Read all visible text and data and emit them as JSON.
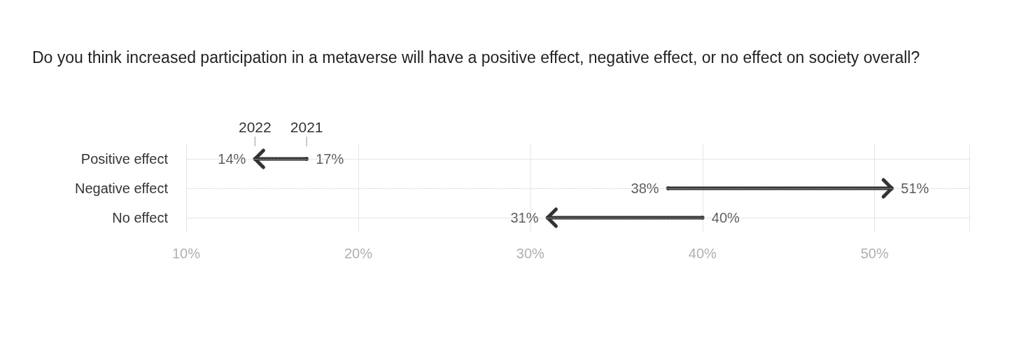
{
  "chart_data": {
    "type": "scatter",
    "orientation": "horizontal",
    "title": "Do you think increased participation in a metaverse will have a positive effect, negative effect, or no effect on society overall?",
    "categories": [
      "Positive effect",
      "Negative effect",
      "No effect"
    ],
    "series": [
      {
        "name": "2021",
        "color": "#333333",
        "values": [
          17,
          38,
          40
        ],
        "value_labels": [
          "17%",
          "38%",
          "40%"
        ]
      },
      {
        "name": "2022",
        "color": "#333333",
        "values": [
          14,
          51,
          31
        ],
        "value_labels": [
          "14%",
          "51%",
          "31%"
        ]
      }
    ],
    "xlim": [
      10,
      55.5
    ],
    "xticks": [
      {
        "value": 10,
        "label": "10%"
      },
      {
        "value": 20,
        "label": "20%"
      },
      {
        "value": 30,
        "label": "30%"
      },
      {
        "value": 40,
        "label": "40%"
      },
      {
        "value": 50,
        "label": "50%"
      }
    ],
    "grid": true,
    "legend": false,
    "marker": "circle"
  }
}
